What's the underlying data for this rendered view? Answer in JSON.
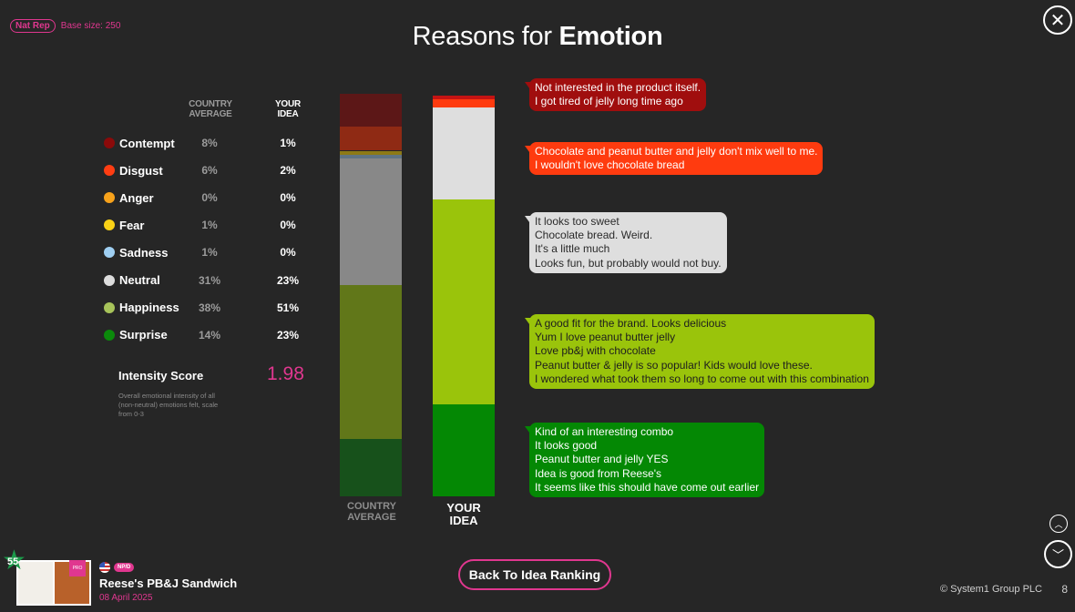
{
  "header": {
    "sample_badge": "Nat Rep",
    "base_size": "Base size: 250",
    "title_prefix": "Reasons for ",
    "title_emphasis": "Emotion"
  },
  "columns": {
    "country_average": "COUNTRY\nAVERAGE",
    "your_idea": "YOUR\nIDEA"
  },
  "emotions": [
    {
      "label": "Contempt",
      "color": "#8b0a0a",
      "country_average": "8%",
      "your_idea": "1%"
    },
    {
      "label": "Disgust",
      "color": "#ff3d12",
      "country_average": "6%",
      "your_idea": "2%"
    },
    {
      "label": "Anger",
      "color": "#f7a21b",
      "country_average": "0%",
      "your_idea": "0%"
    },
    {
      "label": "Fear",
      "color": "#f9d116",
      "country_average": "1%",
      "your_idea": "0%"
    },
    {
      "label": "Sadness",
      "color": "#9fcff2",
      "country_average": "1%",
      "your_idea": "0%"
    },
    {
      "label": "Neutral",
      "color": "#dddddd",
      "country_average": "31%",
      "your_idea": "23%"
    },
    {
      "label": "Happiness",
      "color": "#a7c35a",
      "country_average": "38%",
      "your_idea": "51%"
    },
    {
      "label": "Surprise",
      "color": "#0b8a0b",
      "country_average": "14%",
      "your_idea": "23%"
    }
  ],
  "intensity": {
    "label": "Intensity Score",
    "value": "1.98",
    "description": "Overall emotional intensity of all (non-neutral) emotions felt, scale from 0-3"
  },
  "bars": {
    "country_average_label": "COUNTRY\nAVERAGE",
    "your_idea_label": "YOUR\nIDEA",
    "country_average_segments": [
      {
        "emotion": "Contempt",
        "value": 8,
        "color": "#5c1717"
      },
      {
        "emotion": "Disgust",
        "value": 6,
        "color": "#8f2a14"
      },
      {
        "emotion": "Anger",
        "value": 0,
        "color": "#8a5a14"
      },
      {
        "emotion": "Fear",
        "value": 1,
        "color": "#8d7a16"
      },
      {
        "emotion": "Sadness",
        "value": 1,
        "color": "#607483"
      },
      {
        "emotion": "Neutral",
        "value": 31,
        "color": "#888888"
      },
      {
        "emotion": "Happiness",
        "value": 38,
        "color": "#617719"
      },
      {
        "emotion": "Surprise",
        "value": 14,
        "color": "#17511b"
      }
    ],
    "your_idea_segments": [
      {
        "emotion": "Contempt",
        "value": 1,
        "color": "#c41313"
      },
      {
        "emotion": "Disgust",
        "value": 2,
        "color": "#ff3b0f"
      },
      {
        "emotion": "Anger",
        "value": 0,
        "color": "#f7a21b"
      },
      {
        "emotion": "Fear",
        "value": 0,
        "color": "#f9d116"
      },
      {
        "emotion": "Sadness",
        "value": 0,
        "color": "#9fcff2"
      },
      {
        "emotion": "Neutral",
        "value": 23,
        "color": "#dedede"
      },
      {
        "emotion": "Happiness",
        "value": 51,
        "color": "#9ac40b"
      },
      {
        "emotion": "Surprise",
        "value": 23,
        "color": "#048804"
      }
    ]
  },
  "comments": [
    {
      "emotion": "Contempt",
      "bg": "#a00e0e",
      "fg": "#ffffff",
      "lines": [
        "Not interested in the product itself.",
        "I got tired of jelly long time ago"
      ]
    },
    {
      "emotion": "Disgust",
      "bg": "#ff3b0f",
      "fg": "#ffffff",
      "lines": [
        "Chocolate and peanut butter and jelly don't mix well to me.",
        "I wouldn't love chocolate bread"
      ]
    },
    {
      "emotion": "Neutral",
      "bg": "#dedede",
      "fg": "#2a2a2a",
      "lines": [
        "It looks too sweet",
        "Chocolate bread. Weird.",
        "It's a little much",
        "Looks fun, but probably would not buy."
      ]
    },
    {
      "emotion": "Happiness",
      "bg": "#9ac40b",
      "fg": "#1e1e1e",
      "lines": [
        "A good fit for the brand.  Looks delicious",
        "Yum I love peanut butter jelly",
        "Love pb&j with chocolate",
        "Peanut butter & jelly is so popular! Kids would love these.",
        "I wondered what took them so long to come out with this combination"
      ]
    },
    {
      "emotion": "Surprise",
      "bg": "#048804",
      "fg": "#ffffff",
      "lines": [
        "Kind of an interesting combo",
        "It looks good",
        "Peanut butter and jelly YES",
        "Idea is good from Reese's",
        "It seems like this should have come out earlier"
      ]
    }
  ],
  "product": {
    "score": "55",
    "badge": "NP/D",
    "thumb_badge": "PRO",
    "name": "Reese's PB&J Sandwich",
    "date": "08 April 2025"
  },
  "footer": {
    "back_button": "Back To Idea Ranking",
    "copyright": "© System1 Group PLC",
    "page_number": "8"
  },
  "icons": {
    "close": "close-icon",
    "nav_up": "chevron-up-icon",
    "nav_down": "chevron-down-icon"
  }
}
